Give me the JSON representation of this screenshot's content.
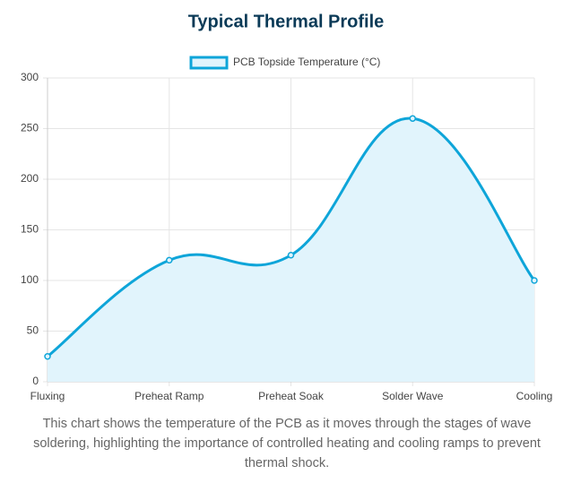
{
  "chart_data": {
    "type": "line",
    "title": "Typical Thermal Profile",
    "categories": [
      "Fluxing",
      "Preheat Ramp",
      "Preheat Soak",
      "Solder Wave",
      "Cooling"
    ],
    "series": [
      {
        "name": "PCB Topside Temperature (°C)",
        "color": "#0ea5d9",
        "fill": "#e1f4fc",
        "values": [
          25,
          120,
          125,
          260,
          100
        ]
      }
    ],
    "ylim": [
      0,
      300
    ],
    "yticks": [
      0,
      50,
      100,
      150,
      200,
      250,
      300
    ],
    "grid": true,
    "legend": "top",
    "caption": "This chart shows the temperature of the PCB as it moves through the stages of wave soldering, highlighting the importance of controlled heating and cooling ramps to prevent thermal shock."
  }
}
